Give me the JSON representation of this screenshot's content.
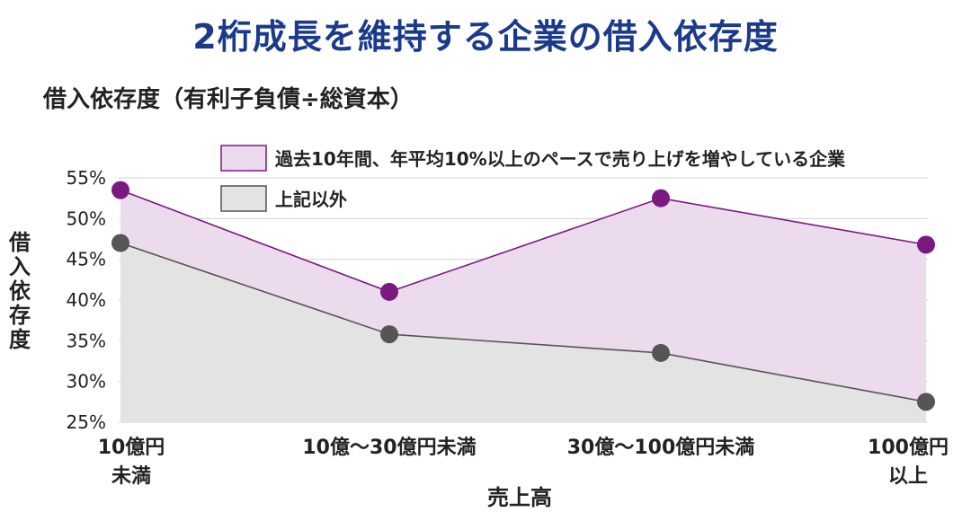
{
  "header": {
    "title": "2桁成長を維持する企業の借入依存度",
    "subtitle": "借入依存度（有利子負債÷総資本）"
  },
  "chart_data": {
    "type": "area",
    "categories": [
      [
        "10億円",
        "未満"
      ],
      [
        "10億〜30億円未満"
      ],
      [
        "30億〜100億円未満"
      ],
      [
        "100億円",
        "以上"
      ]
    ],
    "series": [
      {
        "name": "過去10年間、年平均10%以上のペースで売り上げを増やしている企業",
        "values": [
          53.5,
          41.0,
          52.5,
          46.8
        ],
        "line_color": "#7a1a80",
        "fill_color": "#ecdbec",
        "marker_color": "#7a1a80"
      },
      {
        "name": "上記以外",
        "values": [
          47.0,
          35.8,
          33.5,
          27.5
        ],
        "line_color": "#555555",
        "fill_color": "#e3e3e3",
        "marker_color": "#555555"
      }
    ],
    "yticks": [
      "55%",
      "50%",
      "45%",
      "40%",
      "35%",
      "30%",
      "25%"
    ],
    "ylim": [
      25,
      55
    ],
    "xlabel": "売上高",
    "ylabel": "借入依存度",
    "grid": true,
    "legend_position": "top"
  }
}
